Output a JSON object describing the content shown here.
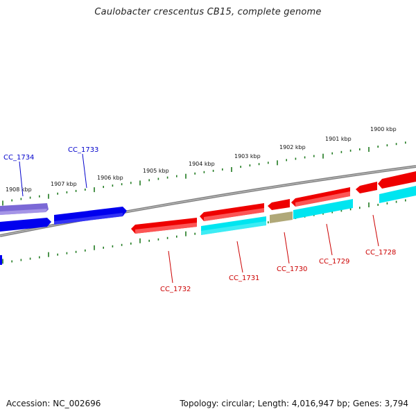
{
  "title": "Caulobacter crescentus CB15, complete genome",
  "footer": {
    "accession": "Accession: NC_002696",
    "info": "Topology: circular; Length: 4,016,947 bp; Genes: 3,794"
  },
  "colors": {
    "backbone": "#808080",
    "tick": "#1f7a1f",
    "forward_gene": "#0000ee",
    "forward_gene_alt": "#7b68d6",
    "reverse_gene": "#ee0000",
    "cds_feature": "#00e5f0",
    "other_feature": "#b0a878",
    "forward_label": "#0000cc",
    "reverse_label": "#cc0000"
  },
  "kbp_labels": [
    "1908 kbp",
    "1907 kbp",
    "1906 kbp",
    "1905 kbp",
    "1904 kbp",
    "1903 kbp",
    "1902 kbp",
    "1901 kbp",
    "1900 kbp"
  ],
  "gene_labels": {
    "forward": [
      "CC_1734",
      "CC_1733"
    ],
    "reverse": [
      "CC_1732",
      "CC_1731",
      "CC_1730",
      "CC_1729",
      "CC_1728"
    ]
  }
}
